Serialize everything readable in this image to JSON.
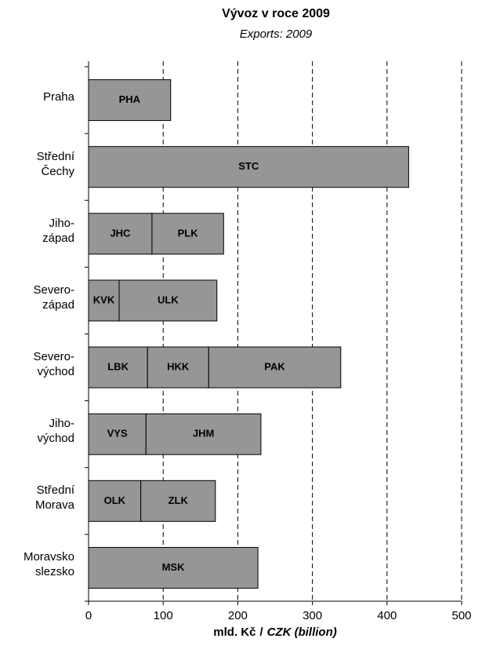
{
  "chart_data": {
    "type": "stacked-barh",
    "title": "Vývoz v roce 2009",
    "subtitle": "Exports: 2009",
    "xlabel": [
      "mld. Kč",
      "/",
      "CZK (billion)"
    ],
    "bars": [
      {
        "category": "Praha",
        "segments": [
          {
            "name": "PHA",
            "value": 110
          }
        ]
      },
      {
        "category": "Střední\nČechy",
        "segments": [
          {
            "name": "STC",
            "value": 429
          }
        ]
      },
      {
        "category": "Jiho-\nzápad",
        "segments": [
          {
            "name": "JHC",
            "value": 85
          },
          {
            "name": "PLK",
            "value": 96
          }
        ]
      },
      {
        "category": "Severo-\nzápad",
        "segments": [
          {
            "name": "KVK",
            "value": 41
          },
          {
            "name": "ULK",
            "value": 131
          }
        ]
      },
      {
        "category": "Severo-\nvýchod",
        "segments": [
          {
            "name": "LBK",
            "value": 79
          },
          {
            "name": "HKK",
            "value": 82
          },
          {
            "name": "PAK",
            "value": 177
          }
        ]
      },
      {
        "category": "Jiho-\nvýchod",
        "segments": [
          {
            "name": "VYS",
            "value": 77
          },
          {
            "name": "JHM",
            "value": 154
          }
        ]
      },
      {
        "category": "Střední\nMorava",
        "segments": [
          {
            "name": "OLK",
            "value": 70
          },
          {
            "name": "ZLK",
            "value": 100
          }
        ]
      },
      {
        "category": "Moravsko\nslezsko",
        "segments": [
          {
            "name": "MSK",
            "value": 227
          }
        ]
      }
    ],
    "color": "#969696",
    "xlim": [
      0,
      500
    ],
    "xticks": [
      0,
      100,
      200,
      300,
      400,
      500
    ],
    "grid": true
  }
}
